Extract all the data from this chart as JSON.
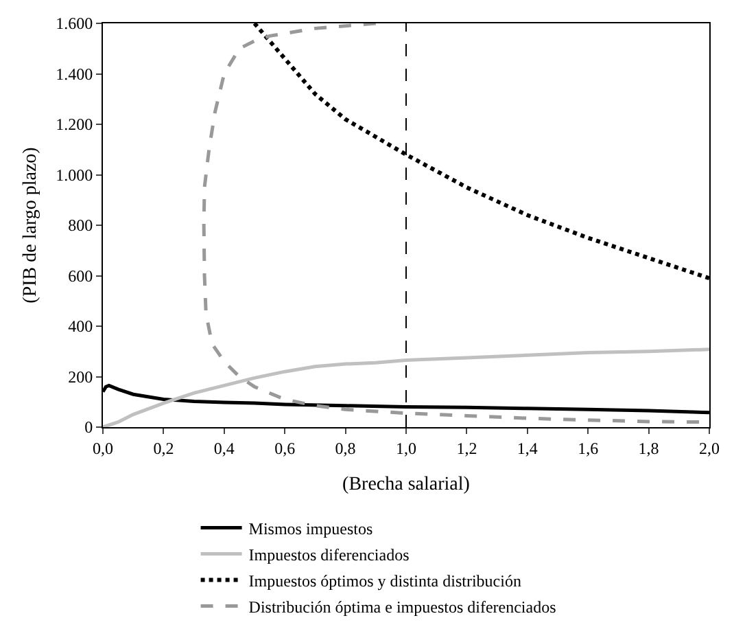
{
  "chart_data": {
    "type": "line",
    "xlabel": "(Brecha salarial)",
    "ylabel": "(PIB de largo plazo)",
    "xlim": [
      0,
      2
    ],
    "ylim": [
      0,
      1600
    ],
    "xticks": [
      {
        "value": 0,
        "label": "0,0"
      },
      {
        "value": 0.2,
        "label": "0,2"
      },
      {
        "value": 0.4,
        "label": "0,4"
      },
      {
        "value": 0.6,
        "label": "0,6"
      },
      {
        "value": 0.8,
        "label": "0,8"
      },
      {
        "value": 1,
        "label": "1,0"
      },
      {
        "value": 1.2,
        "label": "1,2"
      },
      {
        "value": 1.4,
        "label": "1,4"
      },
      {
        "value": 1.6,
        "label": "1,6"
      },
      {
        "value": 1.8,
        "label": "1,8"
      },
      {
        "value": 2,
        "label": "2,0"
      }
    ],
    "yticks": [
      0,
      200,
      400,
      600,
      800,
      {
        "value": 1000,
        "label": "1.000"
      },
      {
        "value": 1200,
        "label": "1.200"
      },
      {
        "value": 1400,
        "label": "1.400"
      },
      {
        "value": 1600,
        "label": "1.600"
      }
    ],
    "grid": false,
    "legend": "bottom",
    "marker": "none",
    "ref_lines": [
      {
        "axis": "x",
        "value": 1,
        "color": "#000000",
        "line_style": "dashed"
      }
    ],
    "series": [
      {
        "name": "Mismos impuestos",
        "color": "#000000",
        "line_style": "solid",
        "x": [
          0,
          0.01,
          0.02,
          0.05,
          0.1,
          0.2,
          0.3,
          0.4,
          0.5,
          0.6,
          0.8,
          1.0,
          1.2,
          1.4,
          1.6,
          1.8,
          2.0
        ],
        "values": [
          140,
          160,
          165,
          150,
          130,
          110,
          102,
          98,
          95,
          90,
          85,
          80,
          78,
          74,
          70,
          65,
          58
        ]
      },
      {
        "name": "Impuestos diferenciados",
        "color": "#c0c0c0",
        "line_style": "solid",
        "x": [
          0,
          0.05,
          0.1,
          0.2,
          0.3,
          0.4,
          0.5,
          0.6,
          0.7,
          0.8,
          0.9,
          1.0,
          1.2,
          1.4,
          1.6,
          1.8,
          2.0
        ],
        "values": [
          0,
          20,
          50,
          95,
          135,
          165,
          195,
          220,
          240,
          250,
          255,
          265,
          275,
          285,
          295,
          300,
          308
        ]
      },
      {
        "name": "Impuestos óptimos y distinta distribución",
        "color": "#000000",
        "line_style": "dotted",
        "x": [
          0.5,
          0.6,
          0.7,
          0.8,
          0.9,
          1.0,
          1.2,
          1.4,
          1.6,
          1.8,
          2.0
        ],
        "values": [
          1600,
          1460,
          1320,
          1220,
          1150,
          1080,
          950,
          840,
          750,
          670,
          590
        ]
      },
      {
        "name": "Distribución óptima e impuestos diferenciados",
        "color": "#999999",
        "line_style": "dashed",
        "x": [
          0.9,
          0.7,
          0.55,
          0.5,
          0.45,
          0.4,
          0.37,
          0.35,
          0.335,
          0.333,
          0.335,
          0.34,
          0.36,
          0.4,
          0.45,
          0.5,
          0.6,
          0.7,
          0.8,
          1.0,
          1.2,
          1.4,
          1.6,
          1.8,
          2.0
        ],
        "values": [
          1600,
          1580,
          1550,
          1530,
          1500,
          1400,
          1250,
          1100,
          950,
          800,
          600,
          450,
          330,
          260,
          200,
          160,
          110,
          85,
          70,
          55,
          45,
          35,
          28,
          22,
          20
        ]
      }
    ]
  }
}
